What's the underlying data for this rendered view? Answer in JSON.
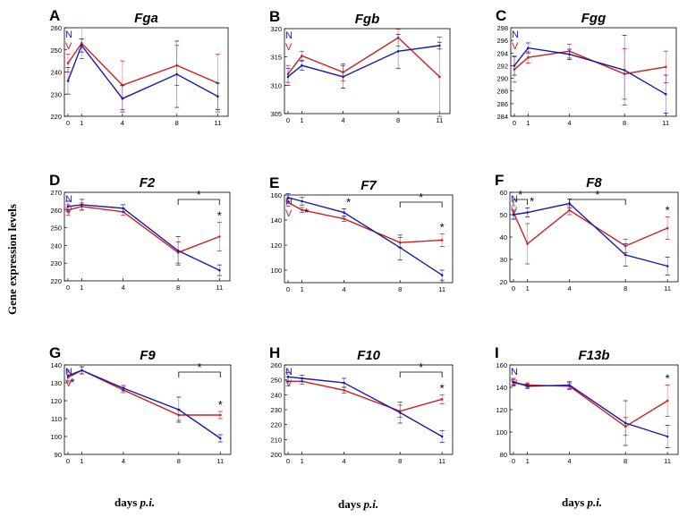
{
  "figure": {
    "y_axis_label": "Gene expression levels",
    "x_axis_label_prefix": "days",
    "x_axis_label_suffix": "p.i."
  },
  "legend": {
    "N": {
      "label": "N",
      "color": "#1a1aa8"
    },
    "V": {
      "label": "V",
      "color": "#cc1f1f"
    }
  },
  "chart_data": [
    {
      "type": "line",
      "panel": "A",
      "title": "Fga",
      "x": [
        0,
        1,
        4,
        8,
        11
      ],
      "xticks": [
        "0",
        "1",
        "4",
        "8",
        "11"
      ],
      "ylim": [
        220,
        260
      ],
      "yticks": [
        220,
        230,
        240,
        250,
        260
      ],
      "series": [
        {
          "name": "N",
          "color": "#1a1aa8",
          "values": [
            236,
            252,
            228,
            239,
            229
          ],
          "err": [
            6,
            3,
            6,
            15,
            6
          ]
        },
        {
          "name": "V",
          "color": "#cc1f1f",
          "values": [
            244,
            253,
            234,
            243,
            235
          ],
          "err": [
            4,
            7,
            11,
            9,
            13
          ]
        }
      ],
      "significance": []
    },
    {
      "type": "line",
      "panel": "B",
      "title": "Fgb",
      "x": [
        0,
        1,
        4,
        8,
        11
      ],
      "xticks": [
        "0",
        "1",
        "4",
        "8",
        "11"
      ],
      "ylim": [
        305,
        320
      ],
      "yticks": [
        305,
        310,
        315,
        320
      ],
      "series": [
        {
          "name": "N",
          "color": "#1a1aa8",
          "values": [
            311.5,
            313.5,
            311.5,
            316.0,
            317.0
          ],
          "err": [
            1.5,
            0.8,
            2,
            3,
            0.6
          ]
        },
        {
          "name": "V",
          "color": "#cc1f1f",
          "values": [
            312.0,
            315.2,
            312.3,
            318.4,
            311.5
          ],
          "err": [
            1.5,
            0.8,
            1.5,
            1.5,
            7
          ]
        }
      ],
      "significance": []
    },
    {
      "type": "line",
      "panel": "C",
      "title": "Fgg",
      "x": [
        0,
        1,
        4,
        8,
        11
      ],
      "xticks": [
        "0",
        "1",
        "4",
        "8",
        "11"
      ],
      "ylim": [
        284,
        298
      ],
      "yticks": [
        284,
        286,
        288,
        290,
        292,
        294,
        296,
        298
      ],
      "series": [
        {
          "name": "N",
          "color": "#1a1aa8",
          "values": [
            292.0,
            294.8,
            293.8,
            291.3,
            287.5
          ],
          "err": [
            1.5,
            0.8,
            0.8,
            5.5,
            3
          ]
        },
        {
          "name": "V",
          "color": "#cc1f1f",
          "values": [
            291.4,
            293.3,
            294.3,
            290.7,
            291.8
          ],
          "err": [
            2,
            0.9,
            1.1,
            4,
            2.5
          ]
        }
      ],
      "significance": []
    },
    {
      "type": "line",
      "panel": "D",
      "title": "F2",
      "x": [
        0,
        1,
        4,
        8,
        11
      ],
      "xticks": [
        "0",
        "1",
        "4",
        "8",
        "11"
      ],
      "ylim": [
        220,
        270
      ],
      "yticks": [
        220,
        230,
        240,
        250,
        260,
        270
      ],
      "series": [
        {
          "name": "N",
          "color": "#1a1aa8",
          "values": [
            262,
            263,
            261,
            237,
            226
          ],
          "err": [
            3,
            3,
            2,
            8,
            3
          ]
        },
        {
          "name": "V",
          "color": "#cc1f1f",
          "values": [
            260,
            262,
            259,
            236,
            245
          ],
          "err": [
            3,
            2,
            2,
            6,
            8
          ]
        }
      ],
      "significance": [
        {
          "type": "bracket",
          "from": 8,
          "to": 11,
          "label": "*"
        },
        {
          "type": "star",
          "x": 11,
          "label": "*"
        }
      ]
    },
    {
      "type": "line",
      "panel": "E",
      "title": "F7",
      "x": [
        0,
        1,
        4,
        8,
        11
      ],
      "xticks": [
        "0",
        "1",
        "4",
        "8",
        "11"
      ],
      "ylim": [
        90,
        160
      ],
      "yticks": [
        100,
        120,
        140,
        160
      ],
      "series": [
        {
          "name": "N",
          "color": "#1a1aa8",
          "values": [
            158,
            155,
            146,
            118,
            96
          ],
          "err": [
            3,
            3,
            3,
            10,
            4
          ]
        },
        {
          "name": "V",
          "color": "#cc1f1f",
          "values": [
            154,
            148,
            141,
            122,
            124
          ],
          "err": [
            3,
            2,
            2,
            4,
            5
          ]
        }
      ],
      "significance": [
        {
          "type": "bracket",
          "from": 8,
          "to": 11,
          "label": "*"
        },
        {
          "type": "star",
          "x": 1,
          "label": "*"
        },
        {
          "type": "star",
          "x": 4,
          "label": "*"
        },
        {
          "type": "star",
          "x": 11,
          "label": "*"
        }
      ]
    },
    {
      "type": "line",
      "panel": "F",
      "title": "F8",
      "x": [
        0,
        1,
        4,
        8,
        11
      ],
      "xticks": [
        "0",
        "1",
        "4",
        "8",
        "11"
      ],
      "ylim": [
        20,
        60
      ],
      "yticks": [
        20,
        30,
        40,
        50,
        60
      ],
      "series": [
        {
          "name": "N",
          "color": "#1a1aa8",
          "values": [
            50,
            51,
            55,
            32,
            27
          ],
          "err": [
            2,
            2,
            2,
            5,
            4
          ]
        },
        {
          "name": "V",
          "color": "#cc1f1f",
          "values": [
            51,
            37,
            52,
            36,
            44
          ],
          "err": [
            3,
            9,
            2,
            3,
            5
          ]
        }
      ],
      "significance": [
        {
          "type": "bracket",
          "from": 0,
          "to": 1,
          "label": "*"
        },
        {
          "type": "bracket",
          "from": 4,
          "to": 8,
          "label": "*"
        },
        {
          "type": "star",
          "x": 1,
          "label": "*"
        },
        {
          "type": "star",
          "x": 11,
          "label": "*"
        }
      ]
    },
    {
      "type": "line",
      "panel": "G",
      "title": "F9",
      "x": [
        0,
        1,
        4,
        8,
        11
      ],
      "xticks": [
        "0",
        "1",
        "4",
        "8",
        "11"
      ],
      "ylim": [
        90,
        140
      ],
      "yticks": [
        90,
        100,
        110,
        120,
        130,
        140
      ],
      "series": [
        {
          "name": "N",
          "color": "#1a1aa8",
          "values": [
            134,
            137,
            127,
            115,
            99
          ],
          "err": [
            3,
            2,
            1.5,
            7,
            2
          ]
        },
        {
          "name": "V",
          "color": "#cc1f1f",
          "values": [
            133,
            137,
            126,
            112,
            112
          ],
          "err": [
            3,
            2,
            1.5,
            3,
            2
          ]
        }
      ],
      "significance": [
        {
          "type": "bracket",
          "from": 8,
          "to": 11,
          "label": "*"
        },
        {
          "type": "star",
          "x": 0,
          "label": "*"
        },
        {
          "type": "star",
          "x": 11,
          "label": "*"
        }
      ]
    },
    {
      "type": "line",
      "panel": "H",
      "title": "F10",
      "x": [
        0,
        1,
        4,
        8,
        11
      ],
      "xticks": [
        "0",
        "1",
        "4",
        "8",
        "11"
      ],
      "ylim": [
        200,
        260
      ],
      "yticks": [
        200,
        210,
        220,
        230,
        240,
        250,
        260
      ],
      "series": [
        {
          "name": "N",
          "color": "#1a1aa8",
          "values": [
            252,
            251,
            248,
            228,
            212
          ],
          "err": [
            3,
            2,
            3,
            7,
            4
          ]
        },
        {
          "name": "V",
          "color": "#cc1f1f",
          "values": [
            249,
            249,
            243,
            229,
            237
          ],
          "err": [
            3,
            2,
            2,
            4,
            3
          ]
        }
      ],
      "significance": [
        {
          "type": "bracket",
          "from": 8,
          "to": 11,
          "label": "*"
        },
        {
          "type": "star",
          "x": 11,
          "label": "*"
        }
      ]
    },
    {
      "type": "line",
      "panel": "I",
      "title": "F13b",
      "x": [
        0,
        1,
        4,
        8,
        11
      ],
      "xticks": [
        "0",
        "1",
        "4",
        "8",
        "11"
      ],
      "ylim": [
        80,
        160
      ],
      "yticks": [
        80,
        100,
        120,
        140,
        160
      ],
      "series": [
        {
          "name": "N",
          "color": "#1a1aa8",
          "values": [
            145,
            141,
            142,
            108,
            96
          ],
          "err": [
            3,
            2,
            3,
            20,
            10
          ]
        },
        {
          "name": "V",
          "color": "#cc1f1f",
          "values": [
            144,
            142,
            141,
            105,
            128
          ],
          "err": [
            3,
            2,
            3,
            8,
            14
          ]
        }
      ],
      "significance": [
        {
          "type": "star",
          "x": 11,
          "label": "*"
        }
      ]
    }
  ]
}
